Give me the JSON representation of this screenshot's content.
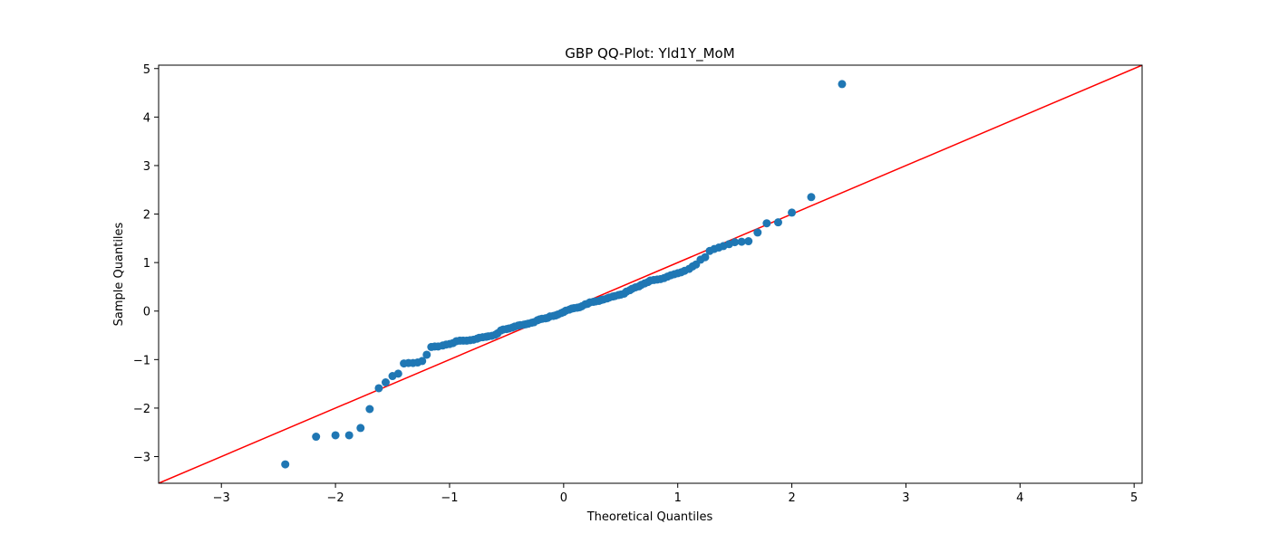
{
  "chart_data": {
    "type": "scatter",
    "title": "GBP QQ-Plot: Yld1Y_MoM",
    "xlabel": "Theoretical Quantiles",
    "ylabel": "Sample Quantiles",
    "xlim": [
      -3.55,
      5.07
    ],
    "ylim": [
      -3.55,
      5.07
    ],
    "xticks": [
      -3,
      -2,
      -1,
      0,
      1,
      2,
      3,
      4,
      5
    ],
    "yticks": [
      -3,
      -2,
      -1,
      0,
      1,
      2,
      3,
      4,
      5
    ],
    "xtick_labels": [
      "−3",
      "−2",
      "−1",
      "0",
      "1",
      "2",
      "3",
      "4",
      "5"
    ],
    "ytick_labels": [
      "−3",
      "−2",
      "−1",
      "0",
      "1",
      "2",
      "3",
      "4",
      "5"
    ],
    "colors": {
      "points": "#1f77b4",
      "line": "#ff0000",
      "frame": "#000000"
    },
    "reference_line": {
      "name": "45-degree reference",
      "slope": 1,
      "intercept": 0
    },
    "series": [
      {
        "name": "sample quantiles",
        "points": [
          [
            -2.44,
            -3.16
          ],
          [
            -2.17,
            -2.59
          ],
          [
            -2.0,
            -2.56
          ],
          [
            -1.88,
            -2.56
          ],
          [
            -1.78,
            -2.41
          ],
          [
            -1.7,
            -2.02
          ],
          [
            -1.62,
            -1.59
          ],
          [
            -1.56,
            -1.47
          ],
          [
            -1.5,
            -1.34
          ],
          [
            -1.45,
            -1.29
          ],
          [
            -1.4,
            -1.08
          ],
          [
            -1.36,
            -1.07
          ],
          [
            -1.32,
            -1.07
          ],
          [
            -1.28,
            -1.06
          ],
          [
            -1.24,
            -1.03
          ],
          [
            -1.2,
            -0.9
          ],
          [
            -1.16,
            -0.74
          ],
          [
            -1.13,
            -0.73
          ],
          [
            -1.1,
            -0.73
          ],
          [
            -1.06,
            -0.71
          ],
          [
            -1.03,
            -0.69
          ],
          [
            -1.0,
            -0.68
          ],
          [
            -0.97,
            -0.66
          ],
          [
            -0.94,
            -0.62
          ],
          [
            -0.91,
            -0.61
          ],
          [
            -0.88,
            -0.61
          ],
          [
            -0.85,
            -0.61
          ],
          [
            -0.82,
            -0.6
          ],
          [
            -0.79,
            -0.59
          ],
          [
            -0.76,
            -0.57
          ],
          [
            -0.74,
            -0.55
          ],
          [
            -0.71,
            -0.54
          ],
          [
            -0.68,
            -0.53
          ],
          [
            -0.66,
            -0.52
          ],
          [
            -0.63,
            -0.51
          ],
          [
            -0.6,
            -0.49
          ],
          [
            -0.58,
            -0.46
          ],
          [
            -0.55,
            -0.4
          ],
          [
            -0.53,
            -0.38
          ],
          [
            -0.5,
            -0.37
          ],
          [
            -0.48,
            -0.36
          ],
          [
            -0.45,
            -0.34
          ],
          [
            -0.43,
            -0.32
          ],
          [
            -0.4,
            -0.3
          ],
          [
            -0.38,
            -0.29
          ],
          [
            -0.35,
            -0.28
          ],
          [
            -0.33,
            -0.27
          ],
          [
            -0.31,
            -0.26
          ],
          [
            -0.28,
            -0.24
          ],
          [
            -0.26,
            -0.23
          ],
          [
            -0.23,
            -0.19
          ],
          [
            -0.21,
            -0.17
          ],
          [
            -0.19,
            -0.16
          ],
          [
            -0.16,
            -0.15
          ],
          [
            -0.14,
            -0.14
          ],
          [
            -0.12,
            -0.11
          ],
          [
            -0.09,
            -0.1
          ],
          [
            -0.07,
            -0.09
          ],
          [
            -0.05,
            -0.07
          ],
          [
            -0.02,
            -0.04
          ],
          [
            0.0,
            -0.02
          ],
          [
            0.02,
            0.01
          ],
          [
            0.05,
            0.03
          ],
          [
            0.07,
            0.05
          ],
          [
            0.09,
            0.06
          ],
          [
            0.12,
            0.07
          ],
          [
            0.14,
            0.08
          ],
          [
            0.16,
            0.1
          ],
          [
            0.19,
            0.14
          ],
          [
            0.21,
            0.15
          ],
          [
            0.23,
            0.18
          ],
          [
            0.26,
            0.19
          ],
          [
            0.28,
            0.2
          ],
          [
            0.31,
            0.21
          ],
          [
            0.33,
            0.23
          ],
          [
            0.35,
            0.24
          ],
          [
            0.38,
            0.26
          ],
          [
            0.4,
            0.28
          ],
          [
            0.43,
            0.3
          ],
          [
            0.45,
            0.31
          ],
          [
            0.48,
            0.33
          ],
          [
            0.5,
            0.34
          ],
          [
            0.53,
            0.36
          ],
          [
            0.55,
            0.4
          ],
          [
            0.58,
            0.43
          ],
          [
            0.6,
            0.46
          ],
          [
            0.63,
            0.49
          ],
          [
            0.66,
            0.51
          ],
          [
            0.68,
            0.54
          ],
          [
            0.71,
            0.57
          ],
          [
            0.74,
            0.6
          ],
          [
            0.76,
            0.63
          ],
          [
            0.79,
            0.64
          ],
          [
            0.82,
            0.65
          ],
          [
            0.85,
            0.66
          ],
          [
            0.88,
            0.68
          ],
          [
            0.91,
            0.71
          ],
          [
            0.94,
            0.74
          ],
          [
            0.97,
            0.76
          ],
          [
            1.0,
            0.78
          ],
          [
            1.03,
            0.8
          ],
          [
            1.06,
            0.83
          ],
          [
            1.1,
            0.87
          ],
          [
            1.13,
            0.92
          ],
          [
            1.16,
            0.96
          ],
          [
            1.2,
            1.06
          ],
          [
            1.24,
            1.11
          ],
          [
            1.28,
            1.24
          ],
          [
            1.32,
            1.28
          ],
          [
            1.36,
            1.31
          ],
          [
            1.4,
            1.34
          ],
          [
            1.45,
            1.38
          ],
          [
            1.5,
            1.42
          ],
          [
            1.56,
            1.43
          ],
          [
            1.62,
            1.44
          ],
          [
            1.7,
            1.62
          ],
          [
            1.78,
            1.81
          ],
          [
            1.88,
            1.83
          ],
          [
            2.0,
            2.03
          ],
          [
            2.17,
            2.35
          ],
          [
            2.44,
            4.68
          ]
        ]
      }
    ]
  }
}
